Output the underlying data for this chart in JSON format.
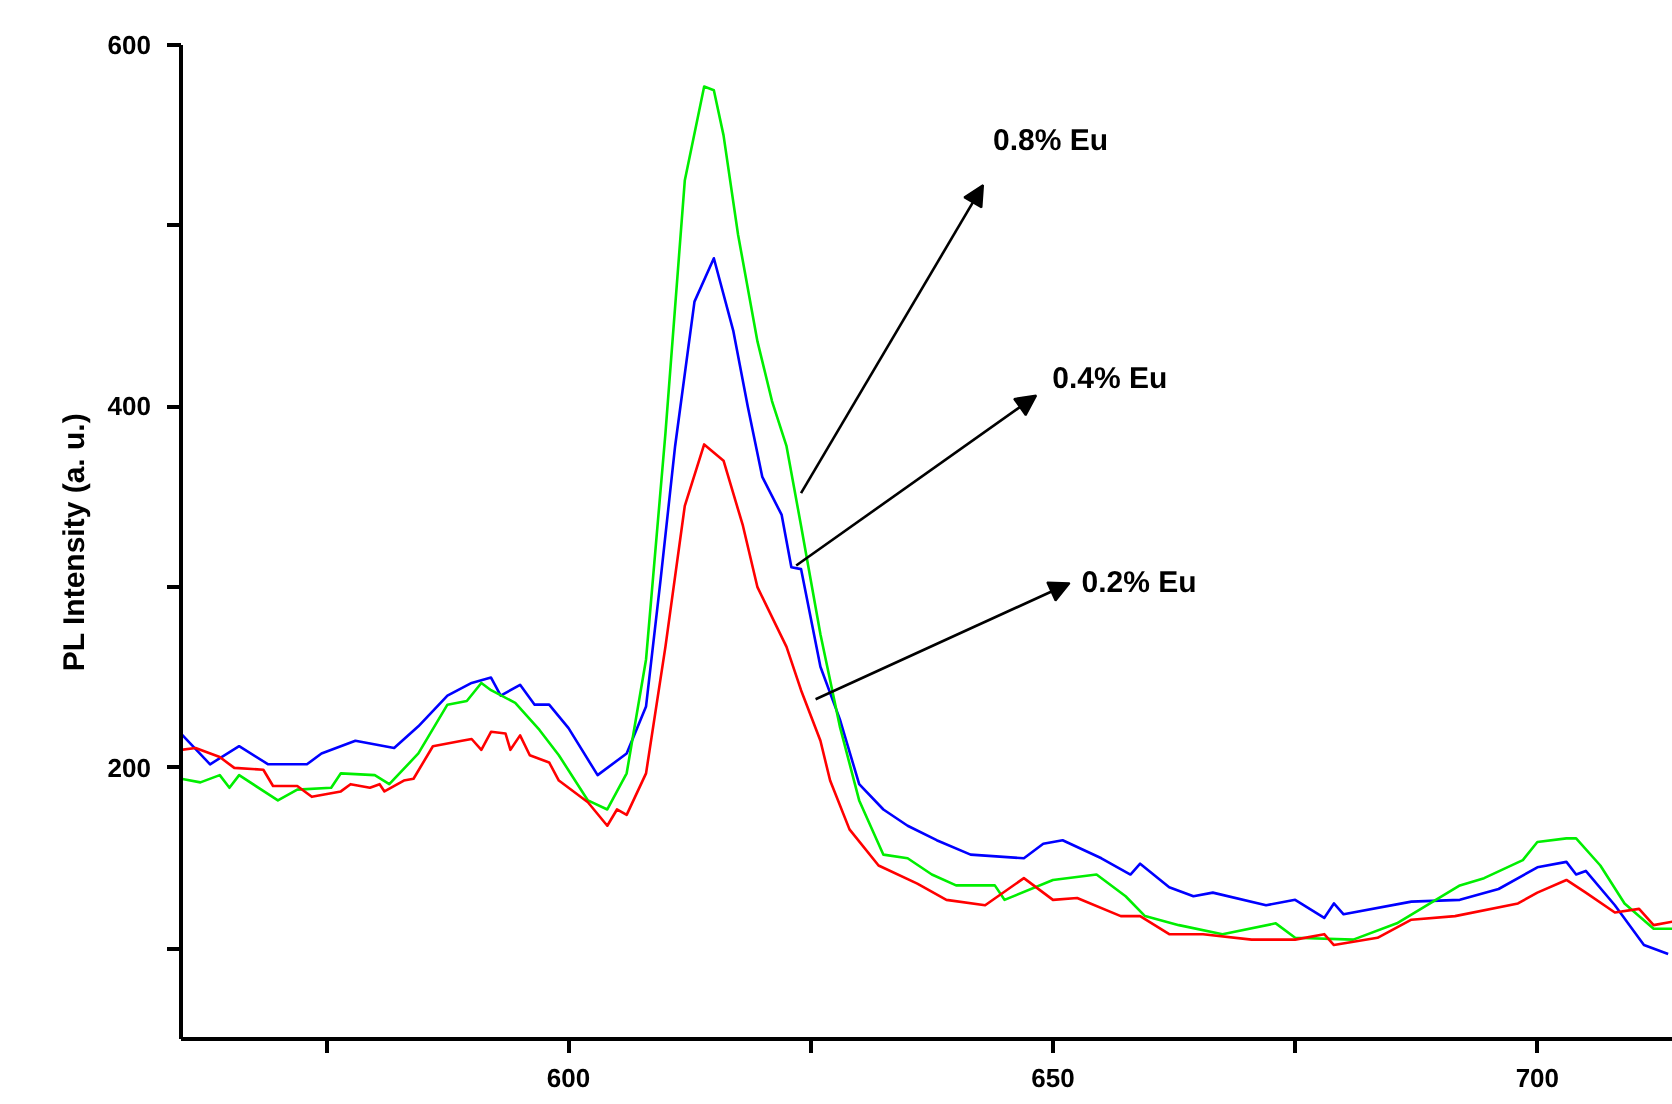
{
  "chart_data": {
    "type": "line",
    "ylabel": "PL Intensity (a. u.)",
    "xlim": [
      560,
      714
    ],
    "ylim": [
      50,
      600
    ],
    "xticks": [
      {
        "value": 575,
        "label": null
      },
      600,
      {
        "value": 625,
        "label": null
      },
      650,
      {
        "value": 675,
        "label": null
      },
      700
    ],
    "yticks": [
      {
        "value": 100,
        "label": null
      },
      200,
      {
        "value": 300,
        "label": null
      },
      400,
      {
        "value": 500,
        "label": null
      },
      600
    ],
    "grid": false,
    "marker": "none",
    "line_style": "solid",
    "series": [
      {
        "color": "#0000ff",
        "x": [
          560,
          563,
          566,
          569,
          573,
          574.5,
          578,
          582,
          584.5,
          587.5,
          590,
          592,
          593,
          595,
          596.5,
          598,
          600,
          603,
          606,
          608,
          609.5,
          611,
          613,
          615,
          617,
          618.5,
          620,
          622,
          623,
          624,
          626,
          628,
          630,
          632.5,
          635,
          638,
          641.5,
          647,
          649,
          651,
          655,
          658,
          659,
          662,
          664.5,
          666.5,
          672,
          675,
          678,
          679,
          680,
          687,
          692,
          696,
          700,
          703,
          704,
          705,
          708,
          711,
          713.5
        ],
        "values": [
          219,
          202,
          212,
          202,
          202,
          208,
          215,
          211,
          223,
          240,
          247,
          250,
          240,
          246,
          235,
          235,
          222,
          196,
          208,
          234,
          304,
          378,
          458,
          482,
          442,
          400,
          361,
          340,
          311,
          310,
          256,
          227,
          191,
          177,
          168,
          160,
          152,
          150,
          158,
          160,
          150,
          141,
          147,
          134,
          129,
          131,
          124,
          127,
          117,
          125,
          119,
          126,
          127,
          133,
          145,
          148,
          141,
          143,
          124,
          102,
          97
        ]
      },
      {
        "color": "#00ee00",
        "x": [
          560,
          562,
          564,
          565,
          566,
          570,
          572,
          575.5,
          576.5,
          580,
          581.5,
          584.5,
          587.5,
          589.5,
          591,
          592,
          594.5,
          597,
          599,
          602,
          604,
          606,
          608,
          610,
          612,
          614,
          615,
          616,
          617.5,
          619.5,
          621,
          622.5,
          624,
          626,
          628,
          630,
          632.5,
          635,
          637.5,
          640,
          644,
          645,
          650,
          654.5,
          657.5,
          659.5,
          663,
          667.5,
          673,
          675,
          681,
          685.5,
          692,
          694.5,
          698.5,
          700,
          703,
          704,
          706.5,
          709,
          712,
          714
        ],
        "values": [
          194,
          192,
          196,
          189,
          196,
          182,
          188,
          189,
          197,
          196,
          191,
          208,
          235,
          237,
          247,
          243,
          236,
          221,
          207,
          182,
          177,
          197,
          260,
          385,
          525,
          577,
          575,
          550,
          495,
          436,
          403,
          378,
          334,
          274,
          223,
          182,
          152,
          150,
          141,
          135,
          135,
          127,
          138,
          141,
          129,
          118,
          113,
          108,
          114,
          106,
          105,
          114,
          135,
          139,
          149,
          159,
          161,
          161,
          146,
          125,
          111,
          111
        ]
      },
      {
        "color": "#ff0000",
        "x": [
          560,
          561.5,
          564,
          565.5,
          568.5,
          569.5,
          572,
          573.5,
          576.5,
          577.5,
          579.5,
          580.5,
          581,
          583,
          584,
          586,
          589,
          590,
          591,
          592,
          593.5,
          594,
          595,
          596,
          598,
          599,
          602,
          604,
          605,
          606,
          608,
          610,
          612,
          614,
          616,
          618,
          619.5,
          622.5,
          624,
          626,
          627,
          629,
          632,
          636,
          639,
          643,
          647,
          650,
          652.5,
          657,
          659,
          662,
          665.5,
          670.5,
          675,
          678,
          679,
          683.5,
          687,
          691.5,
          698,
          700,
          703,
          705,
          708,
          710.5,
          712,
          714
        ],
        "values": [
          210,
          211,
          206,
          200,
          199,
          190,
          190,
          184,
          187,
          191,
          189,
          191,
          187,
          193,
          194,
          212,
          215,
          216,
          210,
          220,
          219,
          210,
          218,
          207,
          203,
          193,
          181,
          168,
          177,
          174,
          197,
          267,
          345,
          379,
          370,
          334,
          300,
          267,
          243,
          215,
          193,
          166,
          146,
          136,
          127,
          124,
          139,
          127,
          128,
          118,
          118,
          108,
          108,
          105,
          105,
          108,
          102,
          106,
          116,
          118,
          125,
          131,
          138,
          131,
          120,
          122,
          113,
          115
        ]
      }
    ],
    "annotations": [
      {
        "text": "0.8% Eu",
        "x": 624,
        "y": 352
      },
      {
        "text": "0.4% Eu",
        "x": 623.5,
        "y": 312
      },
      {
        "text": "0.2% Eu",
        "x": 625.5,
        "y": 238
      }
    ]
  }
}
